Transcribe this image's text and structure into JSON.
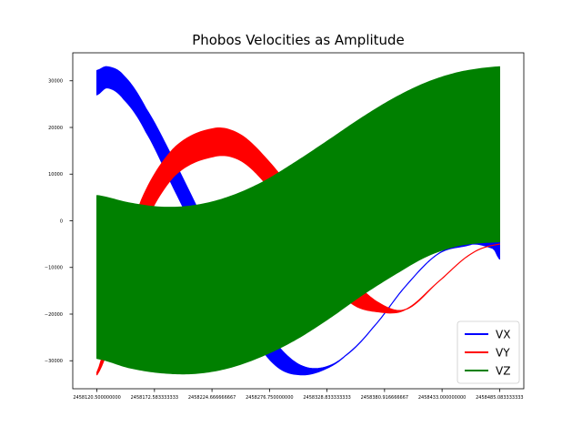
{
  "chart_data": {
    "type": "area",
    "title": "Phobos Velocities as Amplitude",
    "xlabel": "",
    "ylabel": "",
    "x_range": [
      2458120.5,
      2458485.0833333
    ],
    "xlim": [
      2458098.6,
      2458507.0
    ],
    "ylim": [
      -36000,
      36000
    ],
    "x_ticks": [
      {
        "value": 2458120.5,
        "label": "2458120.500000000"
      },
      {
        "value": 2458172.583333333,
        "label": "2458172.583333333"
      },
      {
        "value": 2458224.666666667,
        "label": "2458224.666666667"
      },
      {
        "value": 2458276.75,
        "label": "2458276.750000000"
      },
      {
        "value": 2458328.833333333,
        "label": "2458328.833333333"
      },
      {
        "value": 2458380.916666667,
        "label": "2458380.916666667"
      },
      {
        "value": 2458433.0,
        "label": "2458433.000000000"
      },
      {
        "value": 2458485.083333333,
        "label": "2458485.083333333"
      }
    ],
    "y_ticks": [
      {
        "value": 30000,
        "label": "30000"
      },
      {
        "value": 20000,
        "label": "20000"
      },
      {
        "value": 10000,
        "label": "10000"
      },
      {
        "value": 0,
        "label": "0"
      },
      {
        "value": -10000,
        "label": "−10000"
      },
      {
        "value": -20000,
        "label": "−20000"
      },
      {
        "value": -30000,
        "label": "−30000"
      }
    ],
    "grid": false,
    "legend_position": "bottom-right",
    "series": [
      {
        "name": "VX",
        "color": "#0000ff",
        "upper": [
          [
            2458120.5,
            32200
          ],
          [
            2458130,
            33000
          ],
          [
            2458145,
            31000
          ],
          [
            2458165,
            24000
          ],
          [
            2458190,
            13000
          ],
          [
            2458215,
            1000
          ],
          [
            2458245,
            -11000
          ],
          [
            2458265,
            -20000
          ],
          [
            2458285,
            -27000
          ],
          [
            2458305,
            -31000
          ],
          [
            2458325,
            -31500
          ],
          [
            2458345,
            -29000
          ],
          [
            2458370,
            -23000
          ],
          [
            2458400,
            -14000
          ],
          [
            2458430,
            -7000
          ],
          [
            2458460,
            -5000
          ],
          [
            2458485,
            -2000
          ]
        ],
        "lower": [
          [
            2458120.5,
            27000
          ],
          [
            2458130,
            28500
          ],
          [
            2458145,
            26000
          ],
          [
            2458165,
            19000
          ],
          [
            2458190,
            7000
          ],
          [
            2458215,
            -5000
          ],
          [
            2458245,
            -17000
          ],
          [
            2458265,
            -26000
          ],
          [
            2458285,
            -31500
          ],
          [
            2458305,
            -33000
          ],
          [
            2458325,
            -32000
          ],
          [
            2458345,
            -29000
          ],
          [
            2458370,
            -23000
          ],
          [
            2458400,
            -14000
          ],
          [
            2458430,
            -7000
          ],
          [
            2458460,
            -5000
          ],
          [
            2458480,
            -6000
          ],
          [
            2458485,
            -8200
          ]
        ]
      },
      {
        "name": "VY",
        "color": "#ff0000",
        "upper": [
          [
            2458120.5,
            -32500
          ],
          [
            2458135,
            -18000
          ],
          [
            2458160,
            4000
          ],
          [
            2458190,
            15500
          ],
          [
            2458225,
            19700
          ],
          [
            2458250,
            18500
          ],
          [
            2458275,
            13000
          ],
          [
            2458300,
            5500
          ],
          [
            2458325,
            -3500
          ],
          [
            2458350,
            -12000
          ],
          [
            2458375,
            -17500
          ],
          [
            2458400,
            -19000
          ],
          [
            2458430,
            -13000
          ],
          [
            2458460,
            -7000
          ],
          [
            2458485,
            -5000
          ]
        ],
        "lower": [
          [
            2458120.5,
            -33000
          ],
          [
            2458135,
            -23000
          ],
          [
            2458160,
            -2500
          ],
          [
            2458190,
            9500
          ],
          [
            2458225,
            13700
          ],
          [
            2458250,
            13000
          ],
          [
            2458275,
            7500
          ],
          [
            2458300,
            -1000
          ],
          [
            2458325,
            -10000
          ],
          [
            2458350,
            -17500
          ],
          [
            2458375,
            -19500
          ],
          [
            2458400,
            -19000
          ],
          [
            2458430,
            -13000
          ],
          [
            2458460,
            -7000
          ],
          [
            2458485,
            -5000
          ]
        ]
      },
      {
        "name": "VZ",
        "color": "#008000",
        "upper": [
          [
            2458120.5,
            5400
          ],
          [
            2458150,
            3800
          ],
          [
            2458180,
            2900
          ],
          [
            2458210,
            3300
          ],
          [
            2458240,
            5100
          ],
          [
            2458270,
            8200
          ],
          [
            2458300,
            12500
          ],
          [
            2458330,
            17200
          ],
          [
            2458360,
            22000
          ],
          [
            2458390,
            26300
          ],
          [
            2458420,
            29700
          ],
          [
            2458450,
            31900
          ],
          [
            2458485,
            33000
          ]
        ],
        "lower": [
          [
            2458120.5,
            -29500
          ],
          [
            2458150,
            -31500
          ],
          [
            2458180,
            -32600
          ],
          [
            2458210,
            -32700
          ],
          [
            2458240,
            -31500
          ],
          [
            2458270,
            -29000
          ],
          [
            2458300,
            -25500
          ],
          [
            2458330,
            -21000
          ],
          [
            2458360,
            -16000
          ],
          [
            2458390,
            -11500
          ],
          [
            2458420,
            -7500
          ],
          [
            2458450,
            -5200
          ],
          [
            2458485,
            -4500
          ]
        ]
      }
    ]
  }
}
